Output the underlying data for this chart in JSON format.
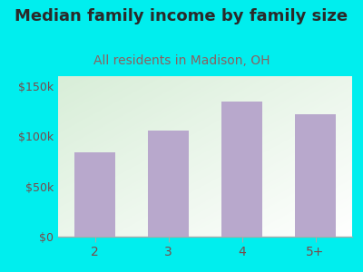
{
  "title": "Median family income by family size",
  "subtitle": "All residents in Madison, OH",
  "title_color": "#2a2a2a",
  "subtitle_color": "#8B6060",
  "categories": [
    "2",
    "3",
    "4",
    "5+"
  ],
  "values": [
    84000,
    106000,
    135000,
    122000
  ],
  "bar_color": "#b8a8cc",
  "background_color": "#00EEEE",
  "plot_bg_top_left": "#d8eed8",
  "plot_bg_bottom_right": "#ffffff",
  "ylim": [
    0,
    160000
  ],
  "yticks": [
    0,
    50000,
    100000,
    150000
  ],
  "ytick_labels": [
    "$0",
    "$50k",
    "$100k",
    "$150k"
  ],
  "title_fontsize": 13,
  "subtitle_fontsize": 10,
  "tick_color": "#7a4a4a",
  "axis_line_color": "#aaaaaa",
  "tick_fontsize": 9,
  "xtick_fontsize": 10
}
